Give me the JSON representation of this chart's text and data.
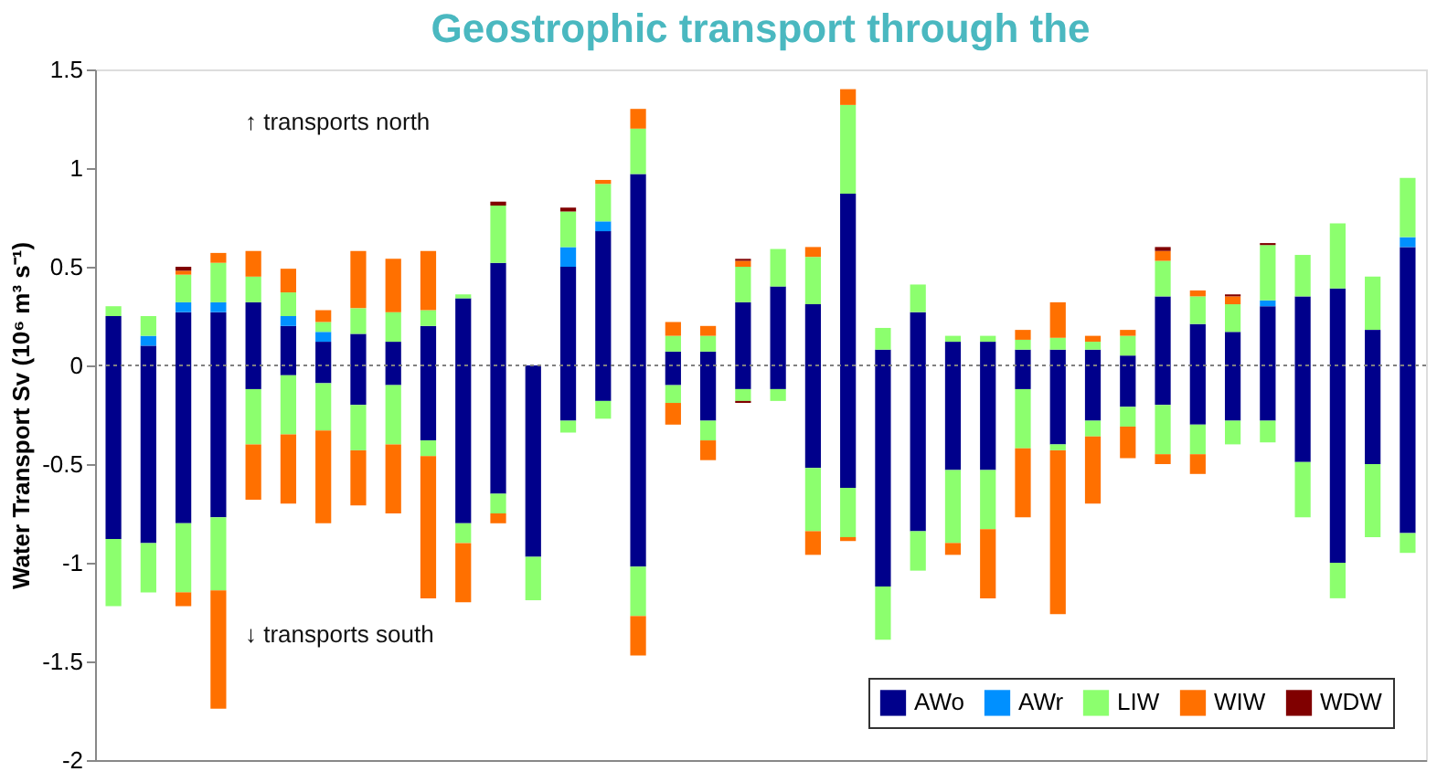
{
  "chart_data": {
    "type": "bar",
    "stacked": true,
    "title": "Geostrophic transport through the",
    "ylabel": "Water Transport Sv (10⁶ m³ s⁻¹)",
    "annotations": [
      "↑ transports north",
      "↓ transports south"
    ],
    "categories": [
      null,
      null,
      null,
      null,
      null,
      null,
      null,
      null,
      null,
      null,
      null,
      null,
      null,
      null,
      null,
      null,
      null,
      null,
      null,
      null,
      null,
      null,
      null,
      null,
      null,
      null,
      null,
      null,
      null,
      null,
      null,
      null,
      null,
      null,
      null,
      null,
      null,
      null
    ],
    "series": [
      {
        "name": "AWo",
        "color": "#00008b",
        "values": [
          0.25,
          0.1,
          0.27,
          0.27,
          0.32,
          0.2,
          0.12,
          0.16,
          0.12,
          0.2,
          0.34,
          0.52,
          null,
          0.5,
          0.68,
          0.97,
          0.07,
          0.07,
          0.32,
          0.4,
          0.31,
          0.87,
          0.08,
          0.27,
          0.12,
          0.12,
          0.08,
          0.08,
          0.08,
          0.05,
          0.35,
          0.21,
          0.17,
          0.3,
          0.35,
          0.39,
          0.18,
          0.6
        ]
      },
      {
        "color": "#00008b",
        "values": [
          -0.88,
          -0.9,
          -0.8,
          -0.77,
          -0.12,
          -0.05,
          -0.09,
          -0.2,
          -0.1,
          -0.38,
          -0.8,
          -0.65,
          -0.97,
          -0.28,
          -0.18,
          -1.02,
          -0.1,
          -0.28,
          -0.12,
          -0.12,
          -0.52,
          -0.62,
          -1.12,
          -0.84,
          -0.53,
          -0.53,
          -0.12,
          -0.4,
          -0.28,
          -0.21,
          -0.2,
          -0.3,
          -0.28,
          -0.28,
          -0.49,
          -1.0,
          -0.5,
          -0.85
        ]
      },
      {
        "name": "AWr",
        "color": "#0090ff",
        "values": [
          null,
          0.05,
          0.05,
          0.05,
          null,
          0.05,
          0.05,
          null,
          null,
          null,
          null,
          null,
          null,
          0.1,
          0.05,
          null,
          null,
          null,
          null,
          null,
          null,
          null,
          null,
          null,
          null,
          null,
          null,
          null,
          null,
          null,
          null,
          null,
          null,
          0.03,
          null,
          null,
          null,
          0.05
        ]
      },
      {
        "name": "LIW",
        "color": "#8cff6e",
        "values": [
          0.05,
          0.1,
          0.14,
          0.2,
          0.13,
          0.12,
          0.05,
          0.13,
          0.15,
          0.08,
          0.02,
          0.29,
          null,
          0.18,
          0.19,
          0.23,
          0.08,
          0.08,
          0.18,
          0.19,
          0.24,
          0.45,
          0.11,
          0.14,
          0.03,
          0.03,
          0.05,
          0.06,
          0.04,
          0.1,
          0.18,
          0.14,
          0.14,
          0.28,
          0.21,
          0.33,
          0.27,
          0.3
        ]
      },
      {
        "color": "#8cff6e",
        "values": [
          -0.34,
          -0.25,
          -0.35,
          -0.37,
          -0.28,
          -0.3,
          -0.24,
          -0.23,
          -0.3,
          -0.08,
          -0.1,
          -0.1,
          -0.22,
          -0.06,
          -0.09,
          -0.25,
          -0.09,
          -0.1,
          -0.06,
          -0.06,
          -0.32,
          -0.25,
          -0.27,
          -0.2,
          -0.37,
          -0.3,
          -0.3,
          -0.03,
          -0.08,
          -0.1,
          -0.25,
          -0.15,
          -0.12,
          -0.11,
          -0.28,
          -0.18,
          -0.37,
          -0.1
        ]
      },
      {
        "name": "WIW",
        "color": "#ff7000",
        "values": [
          null,
          null,
          0.02,
          0.05,
          0.13,
          0.12,
          0.06,
          0.29,
          0.27,
          0.3,
          null,
          null,
          null,
          null,
          0.02,
          0.1,
          0.07,
          0.05,
          0.03,
          null,
          0.05,
          0.08,
          null,
          null,
          null,
          null,
          0.05,
          0.18,
          0.03,
          0.03,
          0.05,
          0.03,
          0.04,
          null,
          null,
          null,
          null,
          null
        ]
      },
      {
        "color": "#ff7000",
        "values": [
          null,
          null,
          -0.07,
          -0.6,
          -0.28,
          -0.35,
          -0.47,
          -0.28,
          -0.35,
          -0.72,
          -0.3,
          -0.05,
          null,
          null,
          null,
          -0.2,
          -0.11,
          -0.1,
          null,
          null,
          -0.12,
          -0.02,
          null,
          null,
          -0.06,
          -0.35,
          -0.35,
          -0.83,
          -0.34,
          -0.16,
          -0.05,
          -0.1,
          null,
          null,
          null,
          null,
          null,
          null
        ]
      },
      {
        "name": "WDW",
        "color": "#800000",
        "values": [
          null,
          null,
          0.02,
          null,
          null,
          null,
          null,
          null,
          null,
          null,
          null,
          0.02,
          null,
          0.02,
          null,
          null,
          null,
          null,
          0.01,
          null,
          null,
          null,
          null,
          null,
          null,
          null,
          null,
          null,
          null,
          null,
          0.02,
          null,
          0.01,
          0.01,
          null,
          null,
          null,
          null
        ]
      },
      {
        "color": "#800000",
        "values": [
          null,
          null,
          null,
          null,
          null,
          null,
          null,
          null,
          null,
          null,
          null,
          null,
          null,
          null,
          null,
          null,
          null,
          null,
          -0.01,
          null,
          null,
          null,
          null,
          null,
          null,
          null,
          null,
          null,
          null,
          null,
          null,
          null,
          null,
          null,
          null,
          null,
          null,
          null
        ]
      }
    ],
    "ylim": [
      -2,
      1.5
    ],
    "yticks": [
      -2,
      -1.5,
      -1,
      -0.5,
      0,
      0.5,
      1,
      1.5
    ],
    "tick_labels": "y",
    "ref_lines": [
      {
        "axis": "y",
        "value": 0,
        "color": "#808080",
        "line_style": "dotted"
      }
    ],
    "grid": false,
    "legend": "bottom right"
  }
}
